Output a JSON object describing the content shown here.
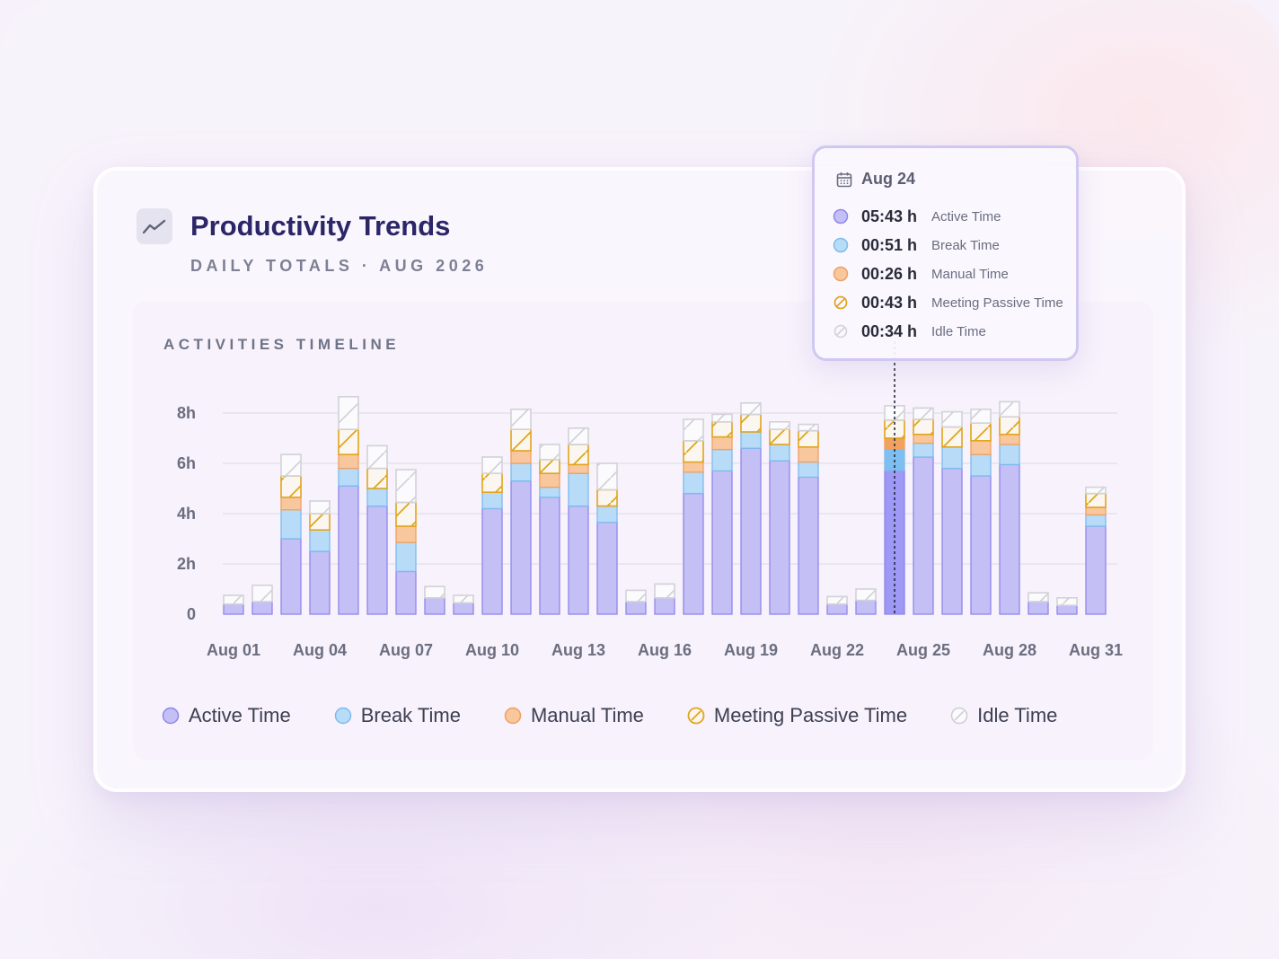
{
  "header": {
    "title": "Productivity Trends",
    "subtitle": "DAILY TOTALS · AUG 2026",
    "icon": "trend-line-icon"
  },
  "panel": {
    "title": "ACTIVITIES TIMELINE"
  },
  "colors": {
    "active_fill": "#c4c0f6",
    "active_stroke": "#8f86ec",
    "break_fill": "#b8dcf8",
    "break_stroke": "#7dbbec",
    "manual_fill": "#f8c79d",
    "manual_stroke": "#f0a061",
    "meeting_stroke": "#e0a51c",
    "idle_stroke": "#d2d2d8",
    "highlight_active": "#9e99f4",
    "highlight_break": "#7fbef0",
    "highlight_manual": "#f3a15f",
    "title": "#2b2668"
  },
  "tooltip": {
    "date": "Aug 24",
    "date_icon": "calendar-icon",
    "rows": [
      {
        "value": "05:43 h",
        "label": "Active Time"
      },
      {
        "value": "00:51 h",
        "label": "Break Time"
      },
      {
        "value": "00:26 h",
        "label": "Manual Time"
      },
      {
        "value": "00:43 h",
        "label": "Meeting Passive Time"
      },
      {
        "value": "00:34 h",
        "label": "Idle Time"
      }
    ]
  },
  "chart_data": {
    "type": "bar",
    "stacked": true,
    "yticks": [
      "0",
      "2h",
      "4h",
      "6h",
      "8h"
    ],
    "ylim": [
      0,
      8.6
    ],
    "grid": true,
    "legend_position": "bottom",
    "highlighted_category": "Aug 24",
    "categories": [
      "Aug 01",
      "Aug 02",
      "Aug 03",
      "Aug 04",
      "Aug 05",
      "Aug 06",
      "Aug 07",
      "Aug 08",
      "Aug 09",
      "Aug 10",
      "Aug 11",
      "Aug 12",
      "Aug 13",
      "Aug 14",
      "Aug 15",
      "Aug 16",
      "Aug 17",
      "Aug 18",
      "Aug 19",
      "Aug 20",
      "Aug 21",
      "Aug 22",
      "Aug 23",
      "Aug 24",
      "Aug 25",
      "Aug 26",
      "Aug 27",
      "Aug 28",
      "Aug 29",
      "Aug 30",
      "Aug 31"
    ],
    "xtick_labels": [
      "Aug 01",
      "Aug 04",
      "Aug 07",
      "Aug 10",
      "Aug 13",
      "Aug 16",
      "Aug 19",
      "Aug 22",
      "Aug 25",
      "Aug 28",
      "Aug 31"
    ],
    "series": [
      {
        "name": "Active Time",
        "values": [
          0.4,
          0.5,
          3.0,
          2.5,
          5.1,
          4.3,
          1.7,
          0.65,
          0.45,
          4.2,
          5.3,
          4.65,
          4.3,
          3.65,
          0.5,
          0.65,
          4.8,
          5.7,
          6.6,
          6.1,
          5.45,
          0.4,
          0.55,
          5.72,
          6.25,
          5.8,
          5.5,
          5.95,
          0.5,
          0.35,
          3.5
        ]
      },
      {
        "name": "Break Time",
        "values": [
          0,
          0,
          1.15,
          0.85,
          0.7,
          0.7,
          1.15,
          0,
          0,
          0.65,
          0.7,
          0.4,
          1.3,
          0.65,
          0,
          0,
          0.85,
          0.85,
          0.65,
          0.65,
          0.6,
          0,
          0,
          0.85,
          0.55,
          0.85,
          0.85,
          0.8,
          0,
          0,
          0.45
        ]
      },
      {
        "name": "Manual Time",
        "values": [
          0,
          0,
          0.5,
          0,
          0.55,
          0,
          0.65,
          0,
          0,
          0,
          0.5,
          0.55,
          0.35,
          0,
          0,
          0,
          0.4,
          0.5,
          0,
          0,
          0.6,
          0,
          0,
          0.43,
          0.35,
          0,
          0.55,
          0.4,
          0,
          0,
          0.3
        ]
      },
      {
        "name": "Meeting Passive Time",
        "values": [
          0,
          0,
          0.85,
          0.65,
          1.0,
          0.8,
          0.95,
          0,
          0,
          0.75,
          0.85,
          0.55,
          0.8,
          0.65,
          0,
          0,
          0.85,
          0.6,
          0.7,
          0.6,
          0.65,
          0,
          0,
          0.72,
          0.6,
          0.8,
          0.7,
          0.7,
          0,
          0,
          0.55
        ]
      },
      {
        "name": "Idle Time",
        "values": [
          0.35,
          0.65,
          0.85,
          0.5,
          1.3,
          0.9,
          1.3,
          0.45,
          0.3,
          0.65,
          0.8,
          0.6,
          0.65,
          1.05,
          0.45,
          0.55,
          0.85,
          0.3,
          0.45,
          0.3,
          0.25,
          0.3,
          0.45,
          0.57,
          0.45,
          0.6,
          0.55,
          0.6,
          0.35,
          0.3,
          0.25
        ]
      }
    ]
  }
}
